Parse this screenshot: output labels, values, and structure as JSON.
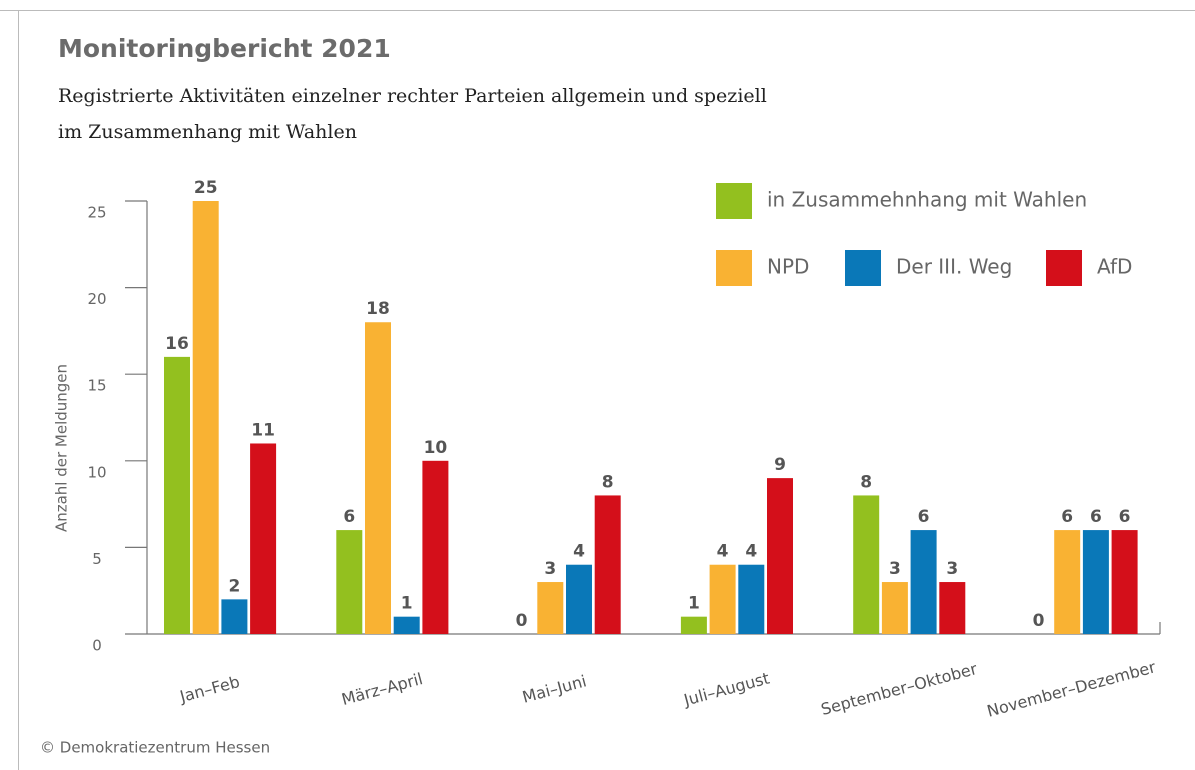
{
  "chart_data": {
    "type": "bar",
    "title": "Monitoringbericht 2021",
    "subtitle": [
      "Registrierte Aktivitäten einzelner rechter Parteien allgemein und speziell",
      "im Zusammenhang mit Wahlen"
    ],
    "y_label": "Anzahl der Meldungen",
    "source": "© Demokratiezentrum Hessen",
    "categories": [
      "Jan–Feb",
      "März–April",
      "Mai–Juni",
      "Juli–August",
      "September–Oktober",
      "November–Dezember"
    ],
    "series": [
      {
        "name": "in Zusammehnhang mit Wahlen",
        "color": "#93c01f",
        "values": [
          16,
          6,
          0,
          1,
          8,
          0
        ]
      },
      {
        "name": "NPD",
        "color": "#f9b233",
        "values": [
          25,
          18,
          3,
          4,
          3,
          6
        ]
      },
      {
        "name": "Der III. Weg",
        "color": "#0a78b8",
        "values": [
          2,
          1,
          4,
          4,
          6,
          6
        ]
      },
      {
        "name": "AfD",
        "color": "#d40f1a",
        "values": [
          11,
          10,
          8,
          9,
          3,
          6
        ]
      }
    ],
    "ylim": [
      0,
      25
    ],
    "yticks": [
      0,
      5,
      10,
      15,
      20,
      25
    ]
  }
}
